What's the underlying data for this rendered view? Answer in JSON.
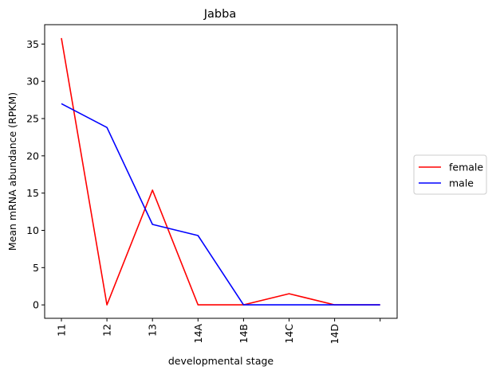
{
  "chart_data": {
    "type": "line",
    "title": "Jabba",
    "xlabel": "developmental stage",
    "ylabel": "Mean mRNA abundance (RPKM)",
    "categories": [
      "11",
      "12",
      "13",
      "14A",
      "14B",
      "14C",
      "14D",
      ""
    ],
    "ylim": [
      -1.8,
      37.6
    ],
    "yticks": [
      0,
      5,
      10,
      15,
      20,
      25,
      30,
      35
    ],
    "grid": false,
    "legend_position": "right-outside",
    "series": [
      {
        "name": "female",
        "color": "#ff0000",
        "values": [
          35.8,
          0,
          15.4,
          0,
          0,
          1.5,
          0,
          0
        ]
      },
      {
        "name": "male",
        "color": "#0000ff",
        "values": [
          27.0,
          23.8,
          10.8,
          9.3,
          0,
          0,
          0,
          0
        ]
      }
    ]
  }
}
